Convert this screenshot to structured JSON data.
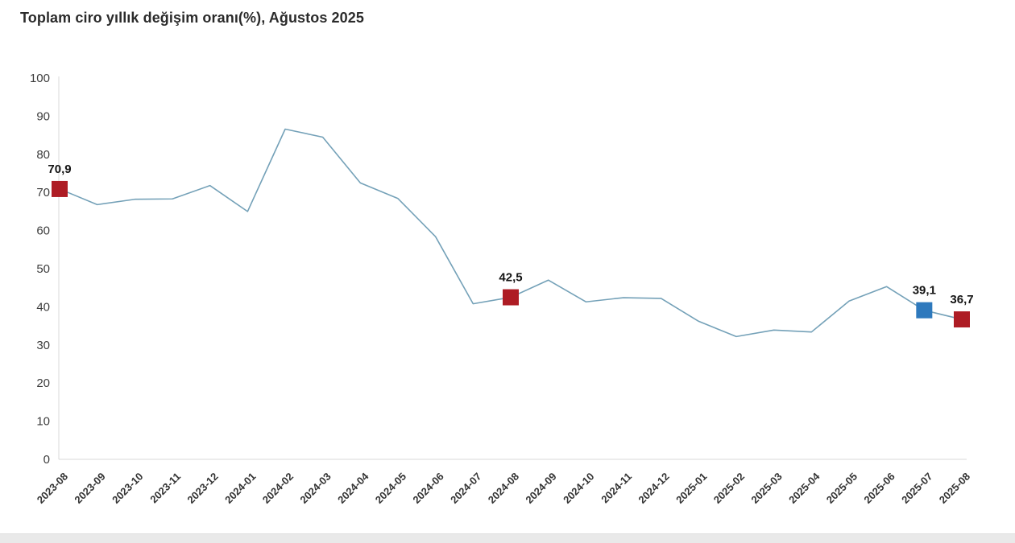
{
  "chart_data": {
    "type": "line",
    "title": "Toplam ciro yıllık değişim oranı(%), Ağustos 2025",
    "categories": [
      "2023-08",
      "2023-09",
      "2023-10",
      "2023-11",
      "2023-12",
      "2024-01",
      "2024-02",
      "2024-03",
      "2024-04",
      "2024-05",
      "2024-06",
      "2024-07",
      "2024-08",
      "2024-09",
      "2024-10",
      "2024-11",
      "2024-12",
      "2025-01",
      "2025-02",
      "2025-03",
      "2025-04",
      "2025-05",
      "2025-06",
      "2025-07",
      "2025-08"
    ],
    "values": [
      70.9,
      66.8,
      68.2,
      68.3,
      71.8,
      65.0,
      86.6,
      84.5,
      72.5,
      68.4,
      58.4,
      40.8,
      42.5,
      47.0,
      41.3,
      42.4,
      42.2,
      36.2,
      32.2,
      33.9,
      33.4,
      41.5,
      45.3,
      39.1,
      36.7
    ],
    "ylim": [
      0,
      100
    ],
    "y_ticks": [
      0,
      10,
      20,
      30,
      40,
      50,
      60,
      70,
      80,
      90,
      100
    ],
    "xlabel": "",
    "ylabel": "",
    "grid": false,
    "legend_position": "none",
    "line_color": "#74a1b8",
    "annotated_points": [
      {
        "index": 0,
        "label": "70,9",
        "marker_color": "#ae1c24"
      },
      {
        "index": 12,
        "label": "42,5",
        "marker_color": "#ae1c24"
      },
      {
        "index": 23,
        "label": "39,1",
        "marker_color": "#2e79bd"
      },
      {
        "index": 24,
        "label": "36,7",
        "marker_color": "#ae1c24"
      }
    ]
  }
}
